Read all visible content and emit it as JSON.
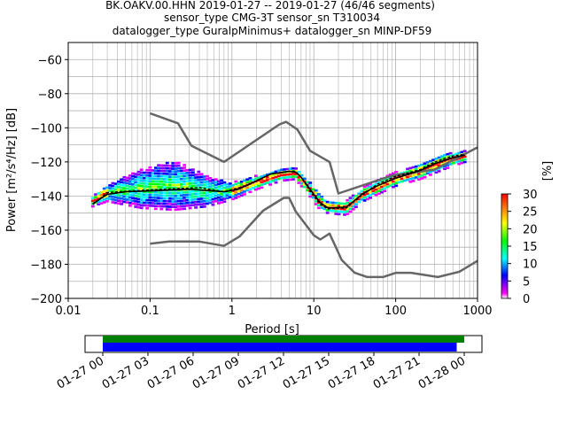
{
  "title": {
    "line1": "BK.OAKV.00.HHN   2019-01-27 -- 2019-01-27  (46/46 segments)",
    "line2": "sensor_type CMG-3T sensor_sn T310034",
    "line3": "datalogger_type GuralpMinimus+ datalogger_sn MINP-DF59"
  },
  "chart_data": [
    {
      "type": "heatmap",
      "xlabel": "Period [s]",
      "ylabel": "Power [m²/s⁴/Hz] [dB]",
      "x_scale": "log",
      "xlim": [
        0.01,
        1000
      ],
      "ylim": [
        -200,
        -50
      ],
      "x_ticks": [
        "0.01",
        "0.1",
        "1",
        "10",
        "100",
        "1000"
      ],
      "y_ticks": [
        "−60",
        "−80",
        "−100",
        "−120",
        "−140",
        "−160",
        "−180",
        "−200"
      ],
      "grid": true,
      "noise_models": [
        {
          "name": "NHNM",
          "color": "#666666",
          "points": [
            [
              0.1,
              -91.5
            ],
            [
              0.22,
              -97.4
            ],
            [
              0.32,
              -110.5
            ],
            [
              0.8,
              -120
            ],
            [
              3.8,
              -98
            ],
            [
              4.6,
              -96.5
            ],
            [
              6.3,
              -101
            ],
            [
              9,
              -113.5
            ],
            [
              15.6,
              -120
            ],
            [
              20,
              -138.5
            ],
            [
              90,
              -128
            ],
            [
              300,
              -124.5
            ],
            [
              1000,
              -111.5
            ]
          ]
        },
        {
          "name": "NLNM",
          "color": "#666666",
          "points": [
            [
              0.1,
              -168
            ],
            [
              0.17,
              -166.7
            ],
            [
              0.4,
              -166.7
            ],
            [
              0.8,
              -169.2
            ],
            [
              1.24,
              -163.7
            ],
            [
              2.4,
              -148.6
            ],
            [
              4.3,
              -141.1
            ],
            [
              5,
              -141.1
            ],
            [
              6,
              -149
            ],
            [
              10,
              -163
            ],
            [
              12,
              -165.5
            ],
            [
              15.6,
              -162
            ],
            [
              21.9,
              -177.5
            ],
            [
              31.6,
              -185
            ],
            [
              45,
              -187.5
            ],
            [
              70,
              -187.5
            ],
            [
              101,
              -185
            ],
            [
              154,
              -185
            ],
            [
              328,
              -187.5
            ],
            [
              600,
              -184.4
            ],
            [
              1000,
              -178
            ]
          ]
        }
      ],
      "mean_curve": [
        [
          0.02,
          -144.5
        ],
        [
          0.03,
          -139
        ],
        [
          0.05,
          -137.5
        ],
        [
          0.1,
          -137
        ],
        [
          0.3,
          -136
        ],
        [
          0.8,
          -137.5
        ],
        [
          1.2,
          -136
        ],
        [
          2,
          -131
        ],
        [
          3,
          -127
        ],
        [
          5,
          -125.5
        ],
        [
          6,
          -126
        ],
        [
          7,
          -129
        ],
        [
          9,
          -136
        ],
        [
          12,
          -144
        ],
        [
          15,
          -147
        ],
        [
          25,
          -146.5
        ],
        [
          40,
          -138.5
        ],
        [
          60,
          -134
        ],
        [
          100,
          -129.5
        ],
        [
          200,
          -125
        ],
        [
          300,
          -121
        ],
        [
          500,
          -117.5
        ],
        [
          700,
          -116
        ]
      ],
      "mode_curve": [
        [
          0.02,
          -145
        ],
        [
          0.03,
          -138
        ],
        [
          0.06,
          -137
        ],
        [
          0.15,
          -136
        ],
        [
          0.4,
          -135
        ],
        [
          0.8,
          -137.5
        ],
        [
          1.5,
          -134
        ],
        [
          3,
          -127
        ],
        [
          5,
          -125.5
        ],
        [
          6,
          -125.5
        ],
        [
          7,
          -129
        ],
        [
          9,
          -137
        ],
        [
          12,
          -145
        ],
        [
          15,
          -147.5
        ],
        [
          25,
          -147
        ],
        [
          40,
          -139
        ],
        [
          60,
          -133
        ],
        [
          100,
          -128.5
        ],
        [
          200,
          -124.5
        ],
        [
          300,
          -120
        ],
        [
          500,
          -116.5
        ],
        [
          700,
          -115.5
        ]
      ],
      "psd_spread": [
        [
          0.02,
          -146,
          -140
        ],
        [
          0.03,
          -143,
          -133
        ],
        [
          0.08,
          -147,
          -124
        ],
        [
          0.2,
          -148,
          -119
        ],
        [
          0.5,
          -146,
          -128
        ],
        [
          1,
          -142,
          -132
        ],
        [
          2,
          -136,
          -128
        ],
        [
          4,
          -131,
          -124
        ],
        [
          6,
          -130,
          -123
        ],
        [
          9,
          -140,
          -132
        ],
        [
          12,
          -148,
          -139
        ],
        [
          15,
          -150,
          -143
        ],
        [
          25,
          -151,
          -143
        ],
        [
          40,
          -143,
          -135
        ],
        [
          60,
          -139,
          -131
        ],
        [
          100,
          -134,
          -126
        ],
        [
          200,
          -130,
          -121
        ],
        [
          400,
          -124,
          -115
        ],
        [
          700,
          -120,
          -113
        ]
      ],
      "colorbar": {
        "label": "[%]",
        "min": 0,
        "max": 30,
        "ticks": [
          "0",
          "5",
          "10",
          "15",
          "20",
          "25",
          "30"
        ],
        "colormap": "pqlx"
      }
    },
    {
      "type": "timeline",
      "x_ticks": [
        "01-27 00",
        "01-27 03",
        "01-27 06",
        "01-27 09",
        "01-27 12",
        "01-27 15",
        "01-27 18",
        "01-27 21",
        "01-28 00"
      ],
      "series": [
        {
          "name": "data",
          "color": "#008000",
          "start_hour": 0,
          "end_hour": 24.0
        },
        {
          "name": "psd",
          "color": "#0000ff",
          "start_hour": 0,
          "end_hour": 23.5
        }
      ]
    }
  ]
}
